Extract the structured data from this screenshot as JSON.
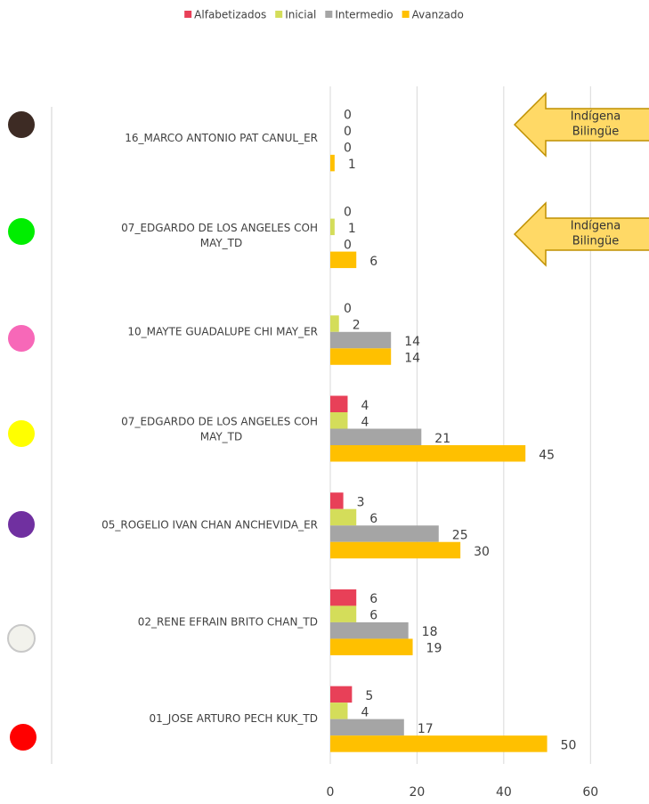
{
  "chart_data": {
    "type": "barh",
    "categories": [
      "16_MARCO ANTONIO PAT CANUL_ER",
      "07_EDGARDO DE LOS ANGELES COH MAY_TD",
      "10_MAYTE GUADALUPE CHI MAY_ER",
      "07_EDGARDO DE LOS ANGELES COH MAY_TD",
      "05_ROGELIO IVAN CHAN ANCHEVIDA_ER",
      "02_RENE EFRAIN BRITO CHAN_TD",
      "01_JOSE ARTURO PECH KUK_TD"
    ],
    "series": [
      {
        "name": "Alfabetizados",
        "color": "#e84058",
        "values": [
          0,
          0,
          0,
          4,
          3,
          6,
          5
        ]
      },
      {
        "name": "Inicial",
        "color": "#d4dd5a",
        "values": [
          0,
          1,
          2,
          4,
          6,
          6,
          4
        ]
      },
      {
        "name": "Intermedio",
        "color": "#a5a5a5",
        "values": [
          0,
          0,
          14,
          21,
          25,
          18,
          17
        ]
      },
      {
        "name": "Avanzado",
        "color": "#ffc000",
        "values": [
          1,
          6,
          14,
          45,
          30,
          19,
          50
        ]
      }
    ],
    "xlim": [
      0,
      70
    ],
    "xticks": [
      0,
      20,
      40,
      60
    ],
    "grid": true,
    "legend": "top",
    "annotations": [
      {
        "lines": [
          "Indígena",
          "Bilingüe"
        ]
      },
      {
        "lines": [
          "Indígena",
          "Bilingüe"
        ]
      }
    ]
  }
}
